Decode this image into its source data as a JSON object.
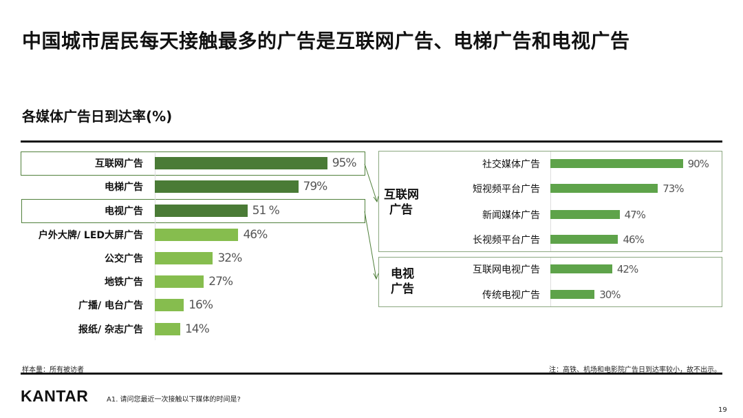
{
  "title": "中国城市居民每天接触最多的广告是互联网广告、电梯广告和电视广告",
  "subtitle": "各媒体广告日到达率(%)",
  "colors": {
    "dark_green": "#4a7b36",
    "light_green": "#86bd4e",
    "sub_green": "#5ea34a",
    "box_border": "#4f7f3a"
  },
  "chart_data": [
    {
      "type": "bar",
      "orientation": "horizontal",
      "categories": [
        "互联网广告",
        "电梯广告",
        "电视广告",
        "户外大牌/ LED大屏广告",
        "公交广告",
        "地铁广告",
        "广播/ 电台广告",
        "报纸/ 杂志广告"
      ],
      "values": [
        95,
        79,
        51,
        46,
        32,
        27,
        16,
        14
      ],
      "data_labels": [
        "95%",
        "79%",
        "51 %",
        "46%",
        "32%",
        "27%",
        "16%",
        "14%"
      ],
      "highlighted": [
        "互联网广告",
        "电视广告"
      ],
      "xlim": [
        0,
        100
      ]
    },
    {
      "type": "bar",
      "orientation": "horizontal",
      "groups": [
        {
          "label_line1": "互联网",
          "label_line2": "广告",
          "categories": [
            "社交媒体广告",
            "短视频平台广告",
            "新闻媒体广告",
            "长视频平台广告"
          ],
          "values": [
            90,
            73,
            47,
            46
          ],
          "data_labels": [
            "90%",
            "73%",
            "47%",
            "46%"
          ]
        },
        {
          "label_line1": "电视",
          "label_line2": "广告",
          "categories": [
            "互联网电视广告",
            "传统电视广告"
          ],
          "values": [
            42,
            30
          ],
          "data_labels": [
            "42%",
            "30%"
          ]
        }
      ],
      "xlim": [
        0,
        100
      ]
    }
  ],
  "footer": {
    "sample": "样本量：所有被访者",
    "note": "注：高铁、机场和电影院广告日到达率较小，故不出示。",
    "brand": "KANTAR",
    "question": "A1. 请问您最近一次接触以下媒体的时间是?",
    "page": "19"
  }
}
